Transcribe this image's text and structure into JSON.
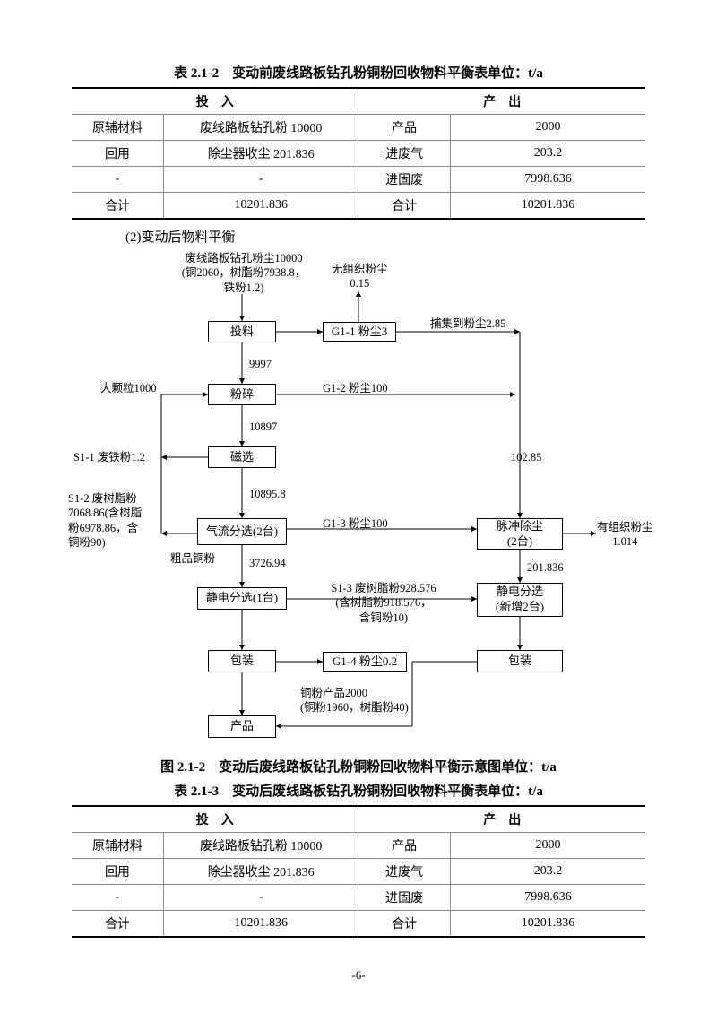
{
  "table1": {
    "title": "表 2.1-2　变动前废线路板钻孔粉铜粉回收物料平衡表单位：t/a",
    "colhead_left": "投　入",
    "colhead_right": "产　出",
    "rows": [
      {
        "a": "原辅材料",
        "b": "废线路板钻孔粉 10000",
        "c": "产品",
        "d": "2000"
      },
      {
        "a": "回用",
        "b": "除尘器收尘 201.836",
        "c": "进废气",
        "d": "203.2"
      },
      {
        "a": "-",
        "b": "-",
        "c": "进固废",
        "d": "7998.636"
      },
      {
        "a": "合计",
        "b": "10201.836",
        "c": "合计",
        "d": "10201.836"
      }
    ]
  },
  "sub": "(2)变动后物料平衡",
  "diagram": {
    "nodes": {
      "toul": "投料",
      "fensui": "粉碎",
      "cixuan": "磁选",
      "qiliu": "气流分选(2台)",
      "jingdian1": "静电分选(1台)",
      "baozhuang1": "包装",
      "chanpin": "产品",
      "g11": "G1-1 粉尘3",
      "g12": "G1-2 粉尘100",
      "g13": "G1-3 粉尘100",
      "g14": "G1-4 粉尘0.2",
      "maichong": "脉冲除尘\n(2台)",
      "jingdian2": "静电分选\n(新增2台)",
      "baozhuang2": "包装"
    },
    "labels": {
      "input_top": "废线路板钻孔粉尘10000\n(铜2060，树脂粉7938.8，\n铁粉1.2)",
      "wuzuzhi": "无组织粉尘\n0.15",
      "buji": "捕集到粉尘2.85",
      "v1": "9997",
      "dake": "大颗粒1000",
      "v2": "10897",
      "s11": "S1-1 废铁粉1.2",
      "v3": "10895.8",
      "s12": "S1-2 废树脂粉\n7068.86(含树脂\n粉6978.86，含\n铜粉90)",
      "cupin": "粗品铜粉",
      "v4": "3726.94",
      "s13": "S1-3 废树脂粉928.576\n(含树脂粉918.576，\n含铜粉10)",
      "v5": "102.85",
      "youzuzhi": "有组织粉尘\n1.014",
      "v6": "201.836",
      "cuprod": "铜粉产品2000\n(铜粉1960，树脂粉40)"
    }
  },
  "fig_caption": "图 2.1-2　变动后废线路板钻孔粉铜粉回收物料平衡示意图单位：t/a",
  "table2": {
    "title": "表 2.1-3　变动后废线路板钻孔粉铜粉回收物料平衡表单位：t/a",
    "colhead_left": "投　入",
    "colhead_right": "产　出",
    "rows": [
      {
        "a": "原辅材料",
        "b": "废线路板钻孔粉 10000",
        "c": "产品",
        "d": "2000"
      },
      {
        "a": "回用",
        "b": "除尘器收尘 201.836",
        "c": "进废气",
        "d": "203.2"
      },
      {
        "a": "-",
        "b": "-",
        "c": "进固废",
        "d": "7998.636"
      },
      {
        "a": "合计",
        "b": "10201.836",
        "c": "合计",
        "d": "10201.836"
      }
    ]
  },
  "page_num": "-6-"
}
